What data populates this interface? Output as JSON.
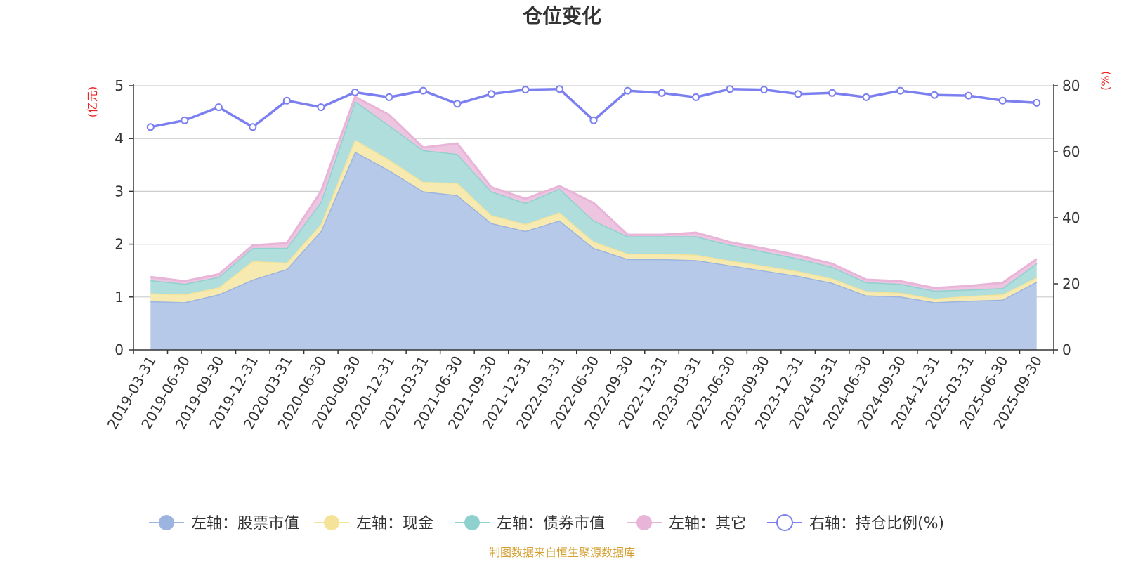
{
  "chart_data": {
    "type": "area",
    "title": "仓位变化",
    "left_axis_unit": "(亿元)",
    "right_axis_unit": "(%)",
    "left_ylim": [
      0,
      5
    ],
    "left_ticks": [
      "0",
      "1",
      "2",
      "3",
      "4",
      "5"
    ],
    "right_ylim": [
      0,
      80
    ],
    "right_ticks": [
      "0",
      "20",
      "40",
      "60",
      "80"
    ],
    "categories": [
      "2019-03-31",
      "2019-06-30",
      "2019-09-30",
      "2019-12-31",
      "2020-03-31",
      "2020-06-30",
      "2020-09-30",
      "2020-12-31",
      "2021-03-31",
      "2021-06-30",
      "2021-09-30",
      "2021-12-31",
      "2022-03-31",
      "2022-06-30",
      "2022-09-30",
      "2022-12-31",
      "2023-03-31",
      "2023-06-30",
      "2023-09-30",
      "2023-12-31",
      "2024-03-31",
      "2024-06-30",
      "2024-09-30",
      "2024-12-31",
      "2025-03-31",
      "2025-06-30",
      "2025-09-30"
    ],
    "stacked_series": [
      {
        "name": "左轴：股票市值",
        "axis": "left",
        "color": "#9bb4e0",
        "fill": "#b7c9e9",
        "values": [
          0.92,
          0.9,
          1.05,
          1.33,
          1.53,
          2.25,
          3.75,
          3.4,
          3.0,
          2.93,
          2.4,
          2.25,
          2.45,
          1.93,
          1.72,
          1.72,
          1.7,
          1.6,
          1.5,
          1.4,
          1.27,
          1.03,
          1.01,
          0.9,
          0.93,
          0.95,
          1.29
        ]
      },
      {
        "name": "左轴：现金",
        "axis": "left",
        "color": "#f5e39a",
        "fill": "#f7eab0",
        "values": [
          0.15,
          0.15,
          0.13,
          0.35,
          0.12,
          0.13,
          0.23,
          0.2,
          0.18,
          0.23,
          0.15,
          0.13,
          0.15,
          0.12,
          0.1,
          0.1,
          0.1,
          0.09,
          0.09,
          0.09,
          0.08,
          0.08,
          0.07,
          0.07,
          0.09,
          0.1,
          0.08
        ]
      },
      {
        "name": "左轴：债券市值",
        "axis": "left",
        "color": "#8fd1cf",
        "fill": "#b0dedc",
        "values": [
          0.25,
          0.2,
          0.2,
          0.25,
          0.28,
          0.42,
          0.73,
          0.65,
          0.6,
          0.55,
          0.45,
          0.4,
          0.45,
          0.4,
          0.33,
          0.33,
          0.35,
          0.3,
          0.27,
          0.24,
          0.22,
          0.17,
          0.17,
          0.15,
          0.12,
          0.12,
          0.27
        ]
      },
      {
        "name": "左轴：其它",
        "axis": "left",
        "color": "#e8b4d8",
        "fill": "#eec5e0",
        "values": [
          0.06,
          0.05,
          0.05,
          0.05,
          0.09,
          0.2,
          0.08,
          0.2,
          0.05,
          0.2,
          0.08,
          0.08,
          0.05,
          0.33,
          0.03,
          0.03,
          0.07,
          0.05,
          0.06,
          0.06,
          0.06,
          0.05,
          0.05,
          0.05,
          0.07,
          0.1,
          0.08
        ]
      }
    ],
    "line_series": {
      "name": "右轴：持仓比例(%)",
      "axis": "right",
      "color": "#7b7ff0",
      "values": [
        67.5,
        69.5,
        73.5,
        67.5,
        75.5,
        73.5,
        78.0,
        76.5,
        78.5,
        74.5,
        77.5,
        78.8,
        79.0,
        69.5,
        78.5,
        77.8,
        76.5,
        79.0,
        78.8,
        77.5,
        77.8,
        76.5,
        78.5,
        77.2,
        77.0,
        75.5,
        74.8
      ]
    },
    "grid": true
  },
  "source_text": "制图数据来自恒生聚源数据库",
  "colors": {
    "title": "#333333",
    "axis": "#333333",
    "grid": "#cccccc",
    "unit_text": "#ee2222",
    "source_text": "#d4a030"
  }
}
